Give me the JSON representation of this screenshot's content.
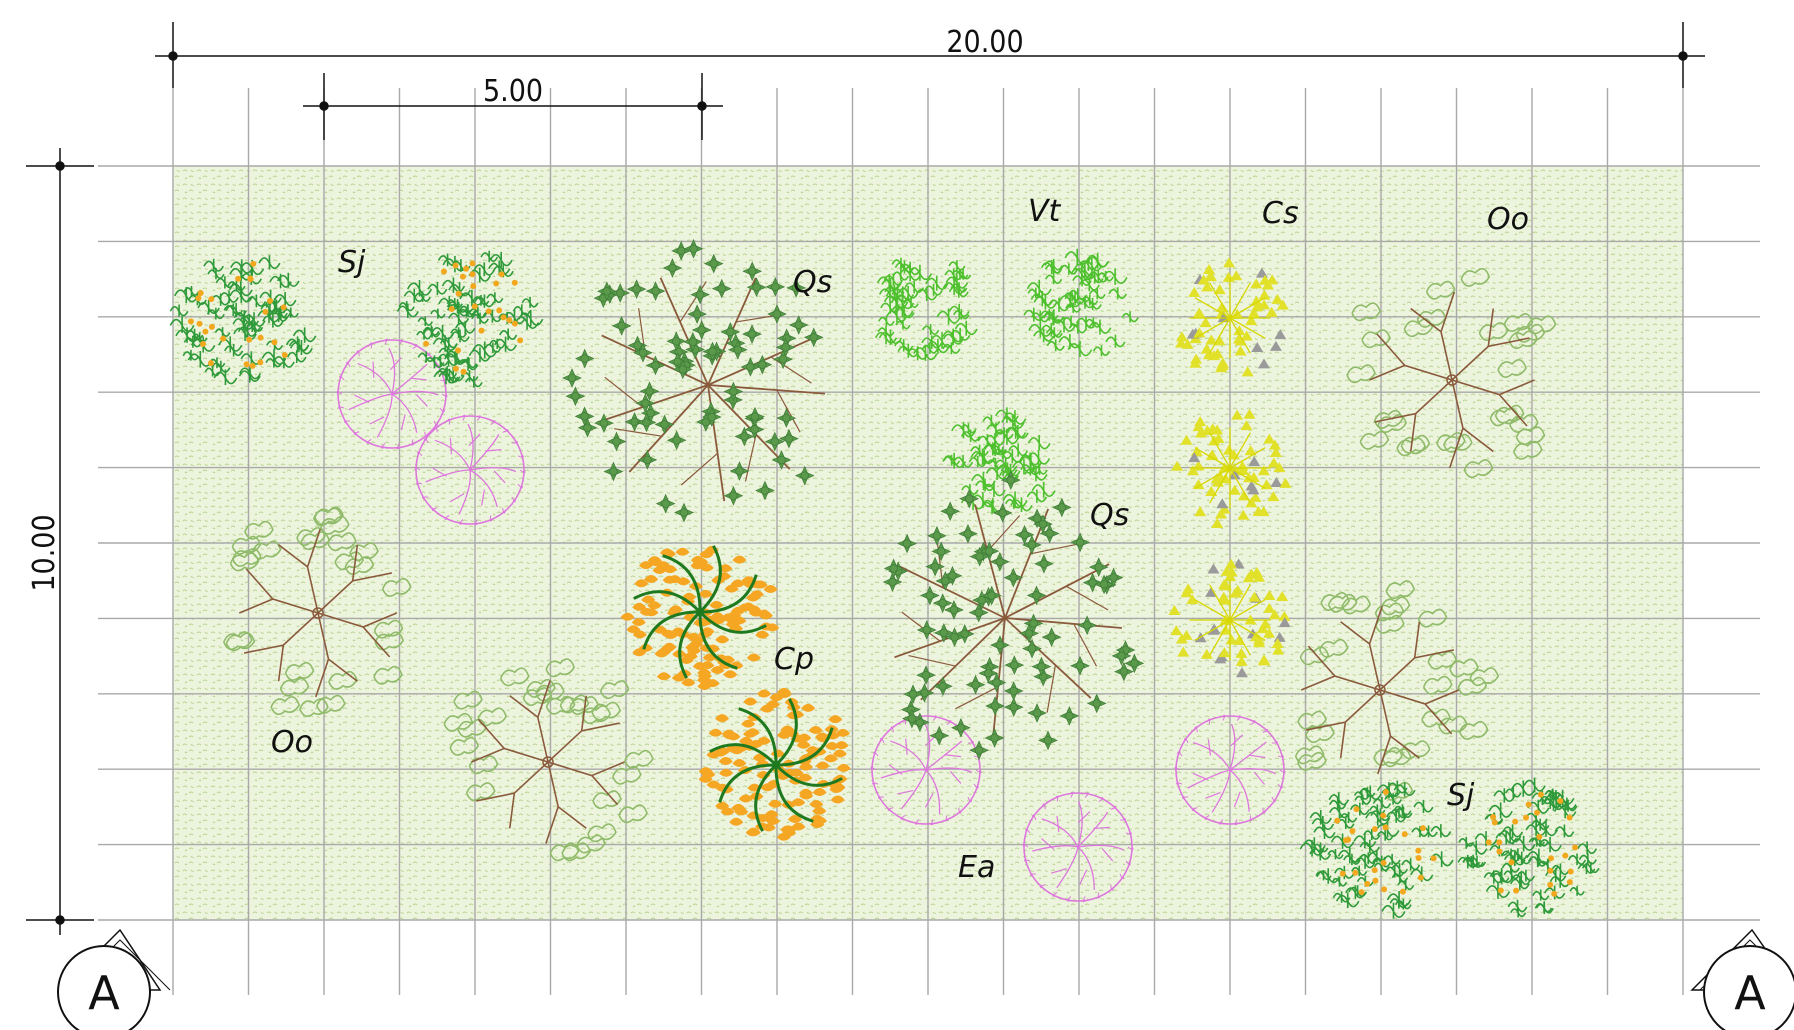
{
  "dimensions": {
    "overall_width": "20.00",
    "grid_span": "5.00",
    "overall_height": "10.00"
  },
  "section_marks": {
    "left": "A",
    "right": "A"
  },
  "plant_labels": {
    "sj_top": "Sj",
    "qs_top": "Qs",
    "vt": "Vt",
    "cs": "Cs",
    "oo_top": "Oo",
    "qs_mid": "Qs",
    "cp": "Cp",
    "oo_left": "Oo",
    "ea": "Ea",
    "sj_bottom": "Sj"
  },
  "colors": {
    "lawn": "#eaf2d9",
    "grid": "#a7a7a7",
    "lemon_leaf": "#2f9a3a",
    "lemon_fruit": "#f2a81e",
    "oak_leaf": "#5a9a4a",
    "branch": "#8a5a3c",
    "lilac": "#dd77dd",
    "vine_green": "#4ec02e",
    "yellow": "#e1e12a",
    "orange": "#f5a623",
    "olive": "#8fbb6a"
  }
}
